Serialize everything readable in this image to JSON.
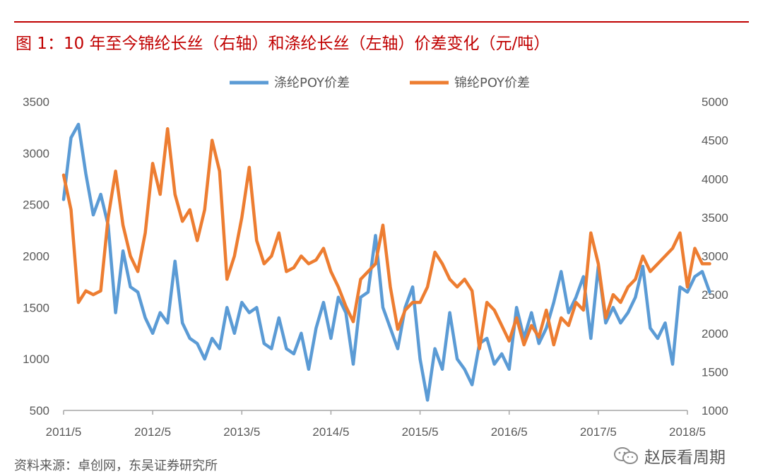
{
  "title": "图 1：10 年至今锦纶长丝（右轴）和涤纶长丝（左轴）价差变化（元/吨）",
  "source_text": "资料来源：卓创网，东吴证券研究所",
  "watermark": {
    "icon": "wechat-icon",
    "text": "赵辰看周期"
  },
  "colors": {
    "title": "#c00000",
    "polyester": "#5b9bd5",
    "nylon": "#ed7d31",
    "axis_text": "#595959"
  },
  "chart_data": {
    "type": "line",
    "title": "图 1：10 年至今锦纶长丝（右轴）和涤纶长丝（左轴）价差变化（元/吨）",
    "xlabel": "",
    "ylabel_left": "",
    "ylabel_right": "",
    "x_tick_labels": [
      "2011/5",
      "2012/5",
      "2013/5",
      "2014/5",
      "2015/5",
      "2016/5",
      "2017/5",
      "2018/5"
    ],
    "y_left": {
      "min": 500,
      "max": 3500,
      "ticks": [
        500,
        1000,
        1500,
        2000,
        2500,
        3000,
        3500
      ]
    },
    "y_right": {
      "min": 1000,
      "max": 5000,
      "ticks": [
        1000,
        1500,
        2000,
        2500,
        3000,
        3500,
        4000,
        4500,
        5000
      ]
    },
    "legend": {
      "position": "top"
    },
    "grid": false,
    "series": [
      {
        "name": "涤纶POY价差",
        "axis": "left",
        "color": "#5b9bd5",
        "points": [
          [
            "2011/5",
            2550
          ],
          [
            "2011/6",
            3150
          ],
          [
            "2011/7",
            3280
          ],
          [
            "2011/8",
            2800
          ],
          [
            "2011/9",
            2400
          ],
          [
            "2011/10",
            2600
          ],
          [
            "2011/11",
            2300
          ],
          [
            "2011/12",
            1450
          ],
          [
            "2012/1",
            2050
          ],
          [
            "2012/2",
            1700
          ],
          [
            "2012/3",
            1650
          ],
          [
            "2012/4",
            1400
          ],
          [
            "2012/5",
            1250
          ],
          [
            "2012/6",
            1450
          ],
          [
            "2012/7",
            1350
          ],
          [
            "2012/8",
            1950
          ],
          [
            "2012/9",
            1350
          ],
          [
            "2012/10",
            1200
          ],
          [
            "2012/11",
            1150
          ],
          [
            "2012/12",
            1000
          ],
          [
            "2013/1",
            1200
          ],
          [
            "2013/2",
            1100
          ],
          [
            "2013/3",
            1500
          ],
          [
            "2013/4",
            1250
          ],
          [
            "2013/5",
            1550
          ],
          [
            "2013/6",
            1450
          ],
          [
            "2013/7",
            1500
          ],
          [
            "2013/8",
            1150
          ],
          [
            "2013/9",
            1100
          ],
          [
            "2013/10",
            1400
          ],
          [
            "2013/11",
            1100
          ],
          [
            "2013/12",
            1050
          ],
          [
            "2014/1",
            1250
          ],
          [
            "2014/2",
            900
          ],
          [
            "2014/3",
            1300
          ],
          [
            "2014/4",
            1550
          ],
          [
            "2014/5",
            1200
          ],
          [
            "2014/6",
            1600
          ],
          [
            "2014/7",
            1450
          ],
          [
            "2014/8",
            950
          ],
          [
            "2014/9",
            1600
          ],
          [
            "2014/10",
            1650
          ],
          [
            "2014/11",
            2200
          ],
          [
            "2014/12",
            1500
          ],
          [
            "2015/1",
            1300
          ],
          [
            "2015/2",
            1100
          ],
          [
            "2015/3",
            1500
          ],
          [
            "2015/4",
            1700
          ],
          [
            "2015/5",
            1000
          ],
          [
            "2015/6",
            600
          ],
          [
            "2015/7",
            1100
          ],
          [
            "2015/8",
            900
          ],
          [
            "2015/9",
            1450
          ],
          [
            "2015/10",
            1000
          ],
          [
            "2015/11",
            900
          ],
          [
            "2015/12",
            750
          ],
          [
            "2016/1",
            1150
          ],
          [
            "2016/2",
            1200
          ],
          [
            "2016/3",
            950
          ],
          [
            "2016/4",
            1050
          ],
          [
            "2016/5",
            900
          ],
          [
            "2016/6",
            1500
          ],
          [
            "2016/7",
            1200
          ],
          [
            "2016/8",
            1450
          ],
          [
            "2016/9",
            1150
          ],
          [
            "2016/10",
            1300
          ],
          [
            "2016/11",
            1550
          ],
          [
            "2016/12",
            1850
          ],
          [
            "2017/1",
            1450
          ],
          [
            "2017/2",
            1600
          ],
          [
            "2017/3",
            1800
          ],
          [
            "2017/4",
            1200
          ],
          [
            "2017/5",
            1900
          ],
          [
            "2017/6",
            1350
          ],
          [
            "2017/7",
            1500
          ],
          [
            "2017/8",
            1350
          ],
          [
            "2017/9",
            1450
          ],
          [
            "2017/10",
            1600
          ],
          [
            "2017/11",
            1900
          ],
          [
            "2017/12",
            1300
          ],
          [
            "2018/1",
            1200
          ],
          [
            "2018/2",
            1350
          ],
          [
            "2018/3",
            950
          ],
          [
            "2018/4",
            1700
          ],
          [
            "2018/5",
            1650
          ],
          [
            "2018/6",
            1800
          ],
          [
            "2018/7",
            1850
          ],
          [
            "2018/8",
            1650
          ]
        ]
      },
      {
        "name": "锦纶POY价差",
        "axis": "right",
        "color": "#ed7d31",
        "points": [
          [
            "2011/5",
            4050
          ],
          [
            "2011/6",
            3600
          ],
          [
            "2011/7",
            2400
          ],
          [
            "2011/8",
            2550
          ],
          [
            "2011/9",
            2500
          ],
          [
            "2011/10",
            2550
          ],
          [
            "2011/11",
            3500
          ],
          [
            "2011/12",
            4100
          ],
          [
            "2012/1",
            3400
          ],
          [
            "2012/2",
            3000
          ],
          [
            "2012/3",
            2800
          ],
          [
            "2012/4",
            3300
          ],
          [
            "2012/5",
            4200
          ],
          [
            "2012/6",
            3800
          ],
          [
            "2012/7",
            4650
          ],
          [
            "2012/8",
            3800
          ],
          [
            "2012/9",
            3450
          ],
          [
            "2012/10",
            3600
          ],
          [
            "2012/11",
            3200
          ],
          [
            "2012/12",
            3600
          ],
          [
            "2013/1",
            4500
          ],
          [
            "2013/2",
            4100
          ],
          [
            "2013/3",
            2700
          ],
          [
            "2013/4",
            3000
          ],
          [
            "2013/5",
            3500
          ],
          [
            "2013/6",
            4150
          ],
          [
            "2013/7",
            3200
          ],
          [
            "2013/8",
            2900
          ],
          [
            "2013/9",
            3000
          ],
          [
            "2013/10",
            3300
          ],
          [
            "2013/11",
            2800
          ],
          [
            "2013/12",
            2850
          ],
          [
            "2014/1",
            3000
          ],
          [
            "2014/2",
            2900
          ],
          [
            "2014/3",
            2950
          ],
          [
            "2014/4",
            3100
          ],
          [
            "2014/5",
            2800
          ],
          [
            "2014/6",
            2600
          ],
          [
            "2014/7",
            2350
          ],
          [
            "2014/8",
            2150
          ],
          [
            "2014/9",
            2700
          ],
          [
            "2014/10",
            2800
          ],
          [
            "2014/11",
            2900
          ],
          [
            "2014/12",
            3400
          ],
          [
            "2015/1",
            2600
          ],
          [
            "2015/2",
            2050
          ],
          [
            "2015/3",
            2300
          ],
          [
            "2015/4",
            2400
          ],
          [
            "2015/5",
            2400
          ],
          [
            "2015/6",
            2600
          ],
          [
            "2015/7",
            3050
          ],
          [
            "2015/8",
            2900
          ],
          [
            "2015/9",
            2700
          ],
          [
            "2015/10",
            2600
          ],
          [
            "2015/11",
            2700
          ],
          [
            "2015/12",
            2550
          ],
          [
            "2016/1",
            1800
          ],
          [
            "2016/2",
            2400
          ],
          [
            "2016/3",
            2300
          ],
          [
            "2016/4",
            2100
          ],
          [
            "2016/5",
            1900
          ],
          [
            "2016/6",
            2200
          ],
          [
            "2016/7",
            1850
          ],
          [
            "2016/8",
            2100
          ],
          [
            "2016/9",
            1950
          ],
          [
            "2016/10",
            2300
          ],
          [
            "2016/11",
            1850
          ],
          [
            "2016/12",
            2200
          ],
          [
            "2017/1",
            2100
          ],
          [
            "2017/2",
            2400
          ],
          [
            "2017/3",
            2300
          ],
          [
            "2017/4",
            3300
          ],
          [
            "2017/5",
            2900
          ],
          [
            "2017/6",
            2200
          ],
          [
            "2017/7",
            2500
          ],
          [
            "2017/8",
            2400
          ],
          [
            "2017/9",
            2600
          ],
          [
            "2017/10",
            2700
          ],
          [
            "2017/11",
            3000
          ],
          [
            "2017/12",
            2800
          ],
          [
            "2018/1",
            2900
          ],
          [
            "2018/2",
            3000
          ],
          [
            "2018/3",
            3100
          ],
          [
            "2018/4",
            3300
          ],
          [
            "2018/5",
            2600
          ],
          [
            "2018/6",
            3100
          ],
          [
            "2018/7",
            2900
          ],
          [
            "2018/8",
            2900
          ]
        ]
      }
    ]
  }
}
